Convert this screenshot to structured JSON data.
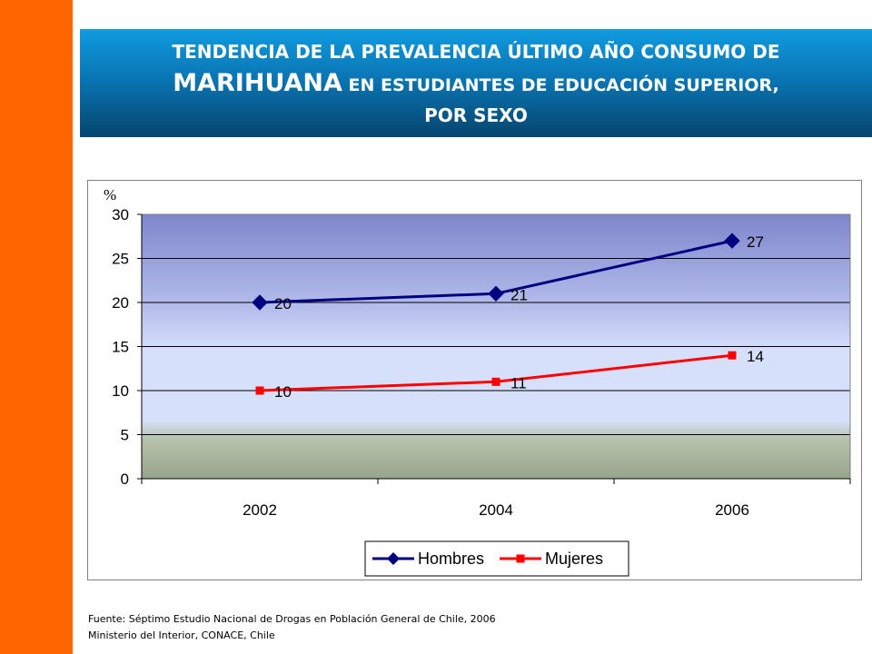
{
  "title": {
    "line1": "TENDENCIA DE LA PREVALENCIA ÚLTIMO AÑO CONSUMO DE",
    "line2_emph": "MARIHUANA",
    "line2_rest": " EN ESTUDIANTES DE EDUCACIÓN SUPERIOR,",
    "line3": "POR SEXO"
  },
  "colors": {
    "accent_bar": "#ff6600",
    "hombres": "#000080",
    "mujeres": "#ff0000"
  },
  "chart_data": {
    "type": "line",
    "ylabel": "%",
    "xlabel": "",
    "categories": [
      "2002",
      "2004",
      "2006"
    ],
    "ylim": [
      0,
      30
    ],
    "yticks": [
      0,
      5,
      10,
      15,
      20,
      25,
      30
    ],
    "grid": true,
    "legend": "bottom",
    "series": [
      {
        "name": "Hombres",
        "values": [
          20,
          21,
          27
        ],
        "labels": [
          "20",
          "21",
          "27"
        ],
        "marker": "diamond",
        "color": "#000080"
      },
      {
        "name": "Mujeres",
        "values": [
          10,
          11,
          14
        ],
        "labels": [
          "10",
          "11",
          "14"
        ],
        "marker": "square",
        "color": "#ff0000"
      }
    ]
  },
  "source": {
    "line1": "Fuente:  Séptimo Estudio Nacional de Drogas en Población General de Chile, 2006",
    "line2": "Ministerio del Interior, CONACE, Chile"
  }
}
